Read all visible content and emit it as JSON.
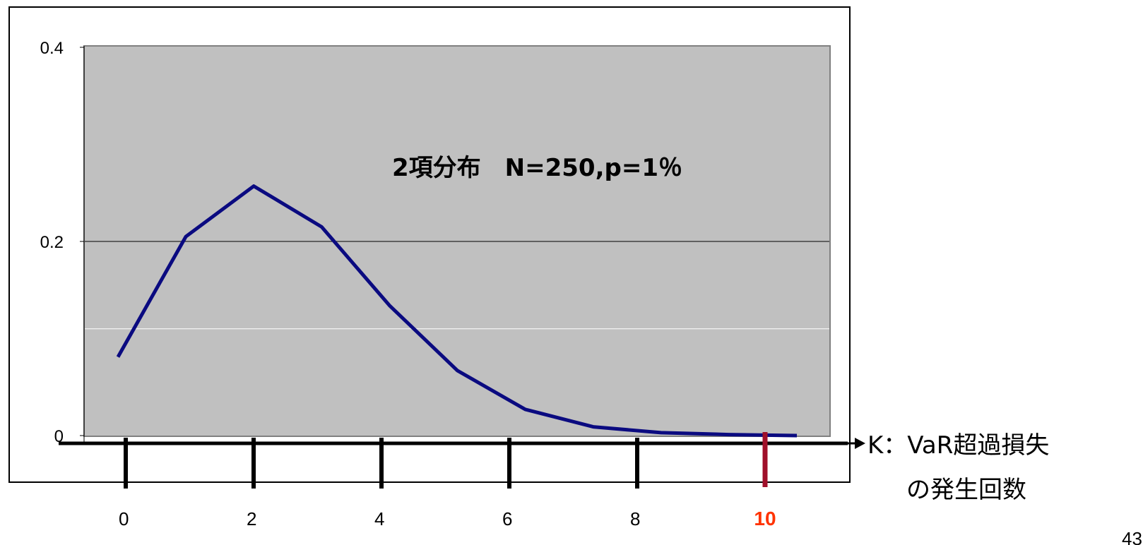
{
  "chart_data": {
    "type": "line",
    "annotation": "2項分布　N=250,p=1％",
    "xlabel_line1": "K：VaR超過損失",
    "xlabel_line2": "の発生回数",
    "x": [
      0,
      1,
      2,
      3,
      4,
      5,
      6,
      7,
      8,
      9,
      10
    ],
    "y": [
      0.081,
      0.205,
      0.257,
      0.215,
      0.134,
      0.067,
      0.027,
      0.009,
      0.003,
      0.001,
      0.0
    ],
    "x_ticks": [
      "0",
      "2",
      "4",
      "6",
      "8",
      "10"
    ],
    "x_tick_values": [
      0,
      2,
      4,
      6,
      8,
      10
    ],
    "highlight_tick": "10",
    "y_ticks": [
      "0",
      "0.2",
      "0.4"
    ],
    "y_tick_values": [
      0,
      0.2,
      0.4
    ],
    "ylim": [
      0,
      0.4
    ],
    "grid": true,
    "plot_background": "#c0c0c0",
    "line_color": "#0a0a80",
    "highlight_color": "#ff3300",
    "highlight_tick_color": "#a0102a",
    "legend": "none"
  },
  "page_number": "43"
}
